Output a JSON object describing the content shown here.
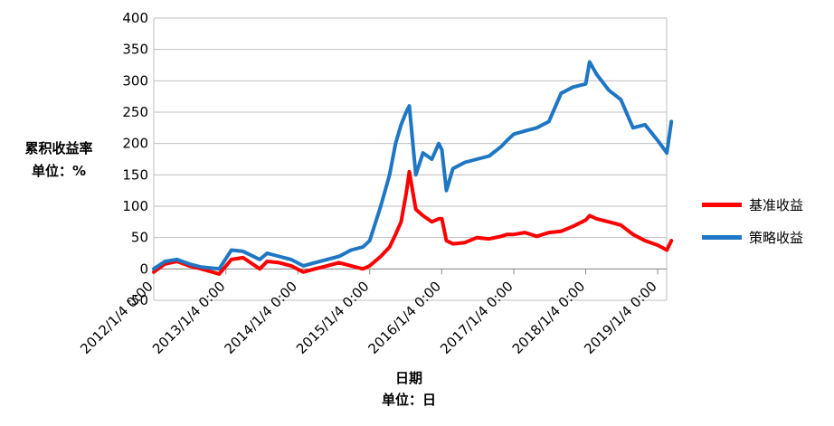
{
  "chart_data": {
    "type": "line",
    "ylabel": [
      "累积收益率",
      "单位：%"
    ],
    "xlabel": [
      "日期",
      "单位：日"
    ],
    "ylim": [
      -50,
      400
    ],
    "yticks": [
      -50,
      0,
      50,
      100,
      150,
      200,
      250,
      300,
      350,
      400
    ],
    "xticks": [
      "2012/1/4 0:00",
      "2013/1/4 0:00",
      "2014/1/4 0:00",
      "2015/1/4 0:00",
      "2016/1/4 0:00",
      "2017/1/4 0:00",
      "2018/1/4 0:00",
      "2019/1/4 0:00"
    ],
    "grid": "horizontal",
    "legend_position": "right",
    "series": [
      {
        "name": "基准收益",
        "color": "#ff0000",
        "x": [
          "2012-01-04",
          "2012-03-01",
          "2012-05-01",
          "2012-07-01",
          "2012-09-01",
          "2012-12-01",
          "2013-02-01",
          "2013-04-01",
          "2013-06-25",
          "2013-08-01",
          "2013-10-01",
          "2013-12-01",
          "2014-02-01",
          "2014-04-01",
          "2014-06-01",
          "2014-08-01",
          "2014-10-01",
          "2014-12-01",
          "2015-01-04",
          "2015-03-01",
          "2015-04-15",
          "2015-05-15",
          "2015-06-12",
          "2015-07-08",
          "2015-07-24",
          "2015-08-26",
          "2015-10-01",
          "2015-11-15",
          "2015-12-20",
          "2016-01-05",
          "2016-01-28",
          "2016-03-01",
          "2016-05-01",
          "2016-07-01",
          "2016-09-01",
          "2016-11-01",
          "2016-12-01",
          "2017-01-04",
          "2017-03-01",
          "2017-05-01",
          "2017-07-01",
          "2017-09-01",
          "2017-11-01",
          "2018-01-04",
          "2018-01-24",
          "2018-03-01",
          "2018-05-01",
          "2018-07-01",
          "2018-09-01",
          "2018-11-01",
          "2019-01-04",
          "2019-02-20",
          "2019-03-15"
        ],
        "y": [
          -5,
          8,
          12,
          5,
          0,
          -8,
          15,
          18,
          0,
          12,
          10,
          5,
          -5,
          0,
          5,
          10,
          5,
          0,
          5,
          20,
          35,
          55,
          75,
          120,
          155,
          95,
          85,
          75,
          80,
          80,
          45,
          40,
          42,
          50,
          48,
          52,
          55,
          55,
          58,
          52,
          58,
          60,
          68,
          78,
          85,
          80,
          75,
          70,
          55,
          45,
          38,
          30,
          45
        ]
      },
      {
        "name": "策略收益",
        "color": "#1f77c4",
        "x": [
          "2012-01-04",
          "2012-03-01",
          "2012-05-01",
          "2012-07-01",
          "2012-09-01",
          "2012-12-01",
          "2013-02-01",
          "2013-04-01",
          "2013-06-25",
          "2013-08-01",
          "2013-10-01",
          "2013-12-01",
          "2014-02-01",
          "2014-04-01",
          "2014-06-01",
          "2014-08-01",
          "2014-10-01",
          "2014-12-01",
          "2015-01-04",
          "2015-03-01",
          "2015-04-15",
          "2015-05-15",
          "2015-06-12",
          "2015-07-08",
          "2015-07-24",
          "2015-08-26",
          "2015-10-01",
          "2015-11-15",
          "2015-12-20",
          "2016-01-05",
          "2016-01-28",
          "2016-03-01",
          "2016-05-01",
          "2016-07-01",
          "2016-09-01",
          "2016-11-01",
          "2016-12-01",
          "2017-01-04",
          "2017-03-01",
          "2017-05-01",
          "2017-07-01",
          "2017-09-01",
          "2017-11-01",
          "2018-01-04",
          "2018-01-24",
          "2018-03-01",
          "2018-05-01",
          "2018-07-01",
          "2018-09-01",
          "2018-11-01",
          "2019-01-04",
          "2019-02-20",
          "2019-03-15"
        ],
        "y": [
          0,
          12,
          15,
          8,
          3,
          0,
          30,
          28,
          15,
          25,
          20,
          15,
          5,
          10,
          15,
          20,
          30,
          35,
          45,
          100,
          150,
          200,
          230,
          250,
          260,
          150,
          185,
          175,
          200,
          190,
          125,
          160,
          170,
          175,
          180,
          195,
          205,
          215,
          220,
          225,
          235,
          280,
          290,
          295,
          330,
          310,
          285,
          270,
          225,
          230,
          205,
          185,
          235
        ]
      }
    ]
  }
}
